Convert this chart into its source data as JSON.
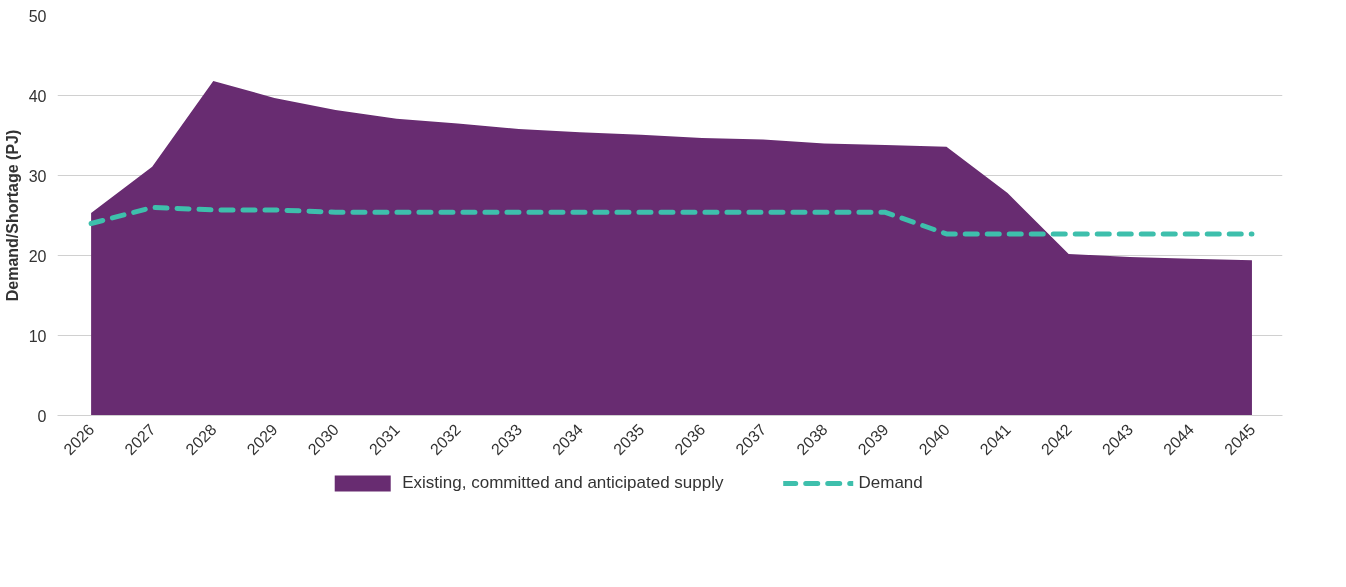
{
  "chart_data": {
    "type": "area",
    "ylabel": "Demand/Shortage (PJ)",
    "categories": [
      "2026",
      "2027",
      "2028",
      "2029",
      "2030",
      "2031",
      "2032",
      "2033",
      "2034",
      "2035",
      "2036",
      "2037",
      "2038",
      "2039",
      "2040",
      "2041",
      "2042",
      "2043",
      "2044",
      "2045"
    ],
    "series": [
      {
        "name": "Existing, committed and anticipated supply",
        "color": "#682c71",
        "values": [
          25.3,
          31.1,
          41.8,
          39.7,
          38.2,
          37.1,
          36.5,
          35.8,
          35.4,
          35.1,
          34.7,
          34.5,
          34.0,
          33.8,
          33.6,
          27.8,
          20.2,
          19.8,
          19.6,
          19.4
        ]
      },
      {
        "name": "Demand",
        "color": "#3ebfac",
        "type": "line",
        "line_style": "dashed",
        "values": [
          24.0,
          26.0,
          25.7,
          25.7,
          25.4,
          25.4,
          25.4,
          25.4,
          25.4,
          25.4,
          25.4,
          25.4,
          25.4,
          25.4,
          22.7,
          22.7,
          22.7,
          22.7,
          22.7,
          22.7
        ]
      }
    ],
    "ylim": [
      0,
      50
    ],
    "yticks": [
      0,
      10,
      20,
      30,
      40,
      50
    ],
    "grid": "y",
    "legend": "bottom"
  }
}
